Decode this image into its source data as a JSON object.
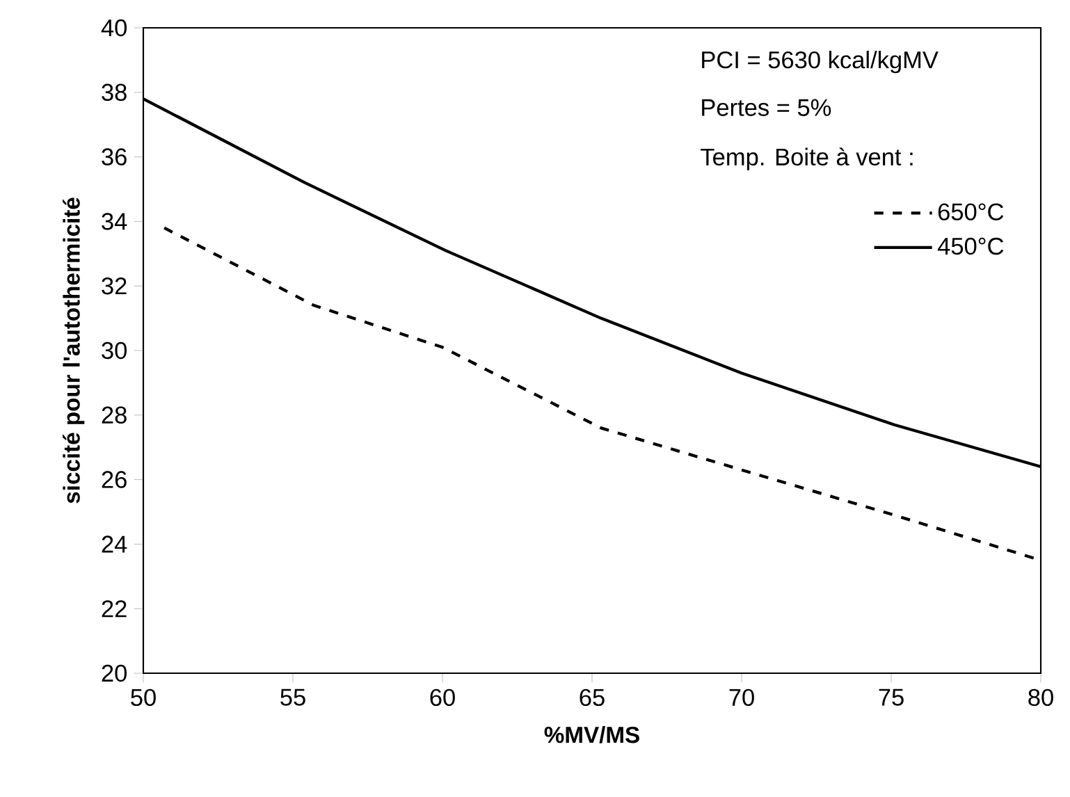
{
  "chart_data": {
    "type": "line",
    "xlabel": "%MV/MS",
    "ylabel": "siccité pour l'autothermicité",
    "xlim": [
      50,
      80
    ],
    "xticks": [
      50,
      55,
      60,
      65,
      70,
      75,
      80
    ],
    "ylim": [
      20,
      40
    ],
    "yticks": [
      20,
      22,
      24,
      26,
      28,
      30,
      32,
      34,
      36,
      38,
      40
    ],
    "grid": false,
    "legend": "top right",
    "legend_title": "Temp. Boite à vent :",
    "annotations": [
      "PCI = 5630 kcal/kgMV",
      "Pertes = 5%"
    ],
    "series": [
      {
        "name": "650°C",
        "color": "#000000",
        "line_style": "dashed",
        "x": [
          50.7,
          55.7,
          60,
          65.3,
          70,
          75.1,
          80
        ],
        "values": [
          33.8,
          31.4,
          30.1,
          27.6,
          26.3,
          24.9,
          23.5
        ]
      },
      {
        "name": "450°C",
        "color": "#000000",
        "line_style": "solid",
        "x": [
          50,
          55.4,
          60.1,
          65.3,
          70,
          75.1,
          80
        ],
        "values": [
          37.8,
          35.2,
          33.1,
          31.0,
          29.3,
          27.7,
          26.4
        ]
      }
    ]
  }
}
